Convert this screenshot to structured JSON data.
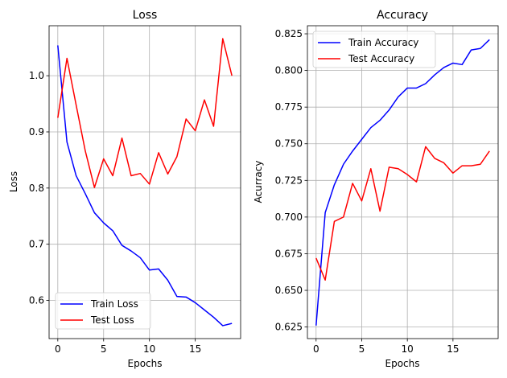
{
  "chart_data": [
    {
      "type": "line",
      "title": "Loss",
      "xlabel": "Epochs",
      "ylabel": "Loss",
      "xlim": [
        -0.95,
        19.95
      ],
      "ylim": [
        0.532,
        1.089
      ],
      "xticks": [
        0,
        5,
        10,
        15
      ],
      "yticks": [
        0.6,
        0.7,
        0.8,
        0.9,
        1.0
      ],
      "ytick_labels": [
        "0.6",
        "0.7",
        "0.8",
        "0.9",
        "1.0"
      ],
      "grid": true,
      "legend_position": "lower-left",
      "x": [
        0,
        1,
        2,
        3,
        4,
        5,
        6,
        7,
        8,
        9,
        10,
        11,
        12,
        13,
        14,
        15,
        16,
        17,
        18,
        19
      ],
      "series": [
        {
          "name": "Train Loss",
          "color": "#0000ff",
          "values": [
            1.054,
            0.882,
            0.822,
            0.79,
            0.756,
            0.738,
            0.724,
            0.698,
            0.688,
            0.676,
            0.654,
            0.656,
            0.636,
            0.607,
            0.606,
            0.596,
            0.583,
            0.57,
            0.555,
            0.559
          ]
        },
        {
          "name": "Test Loss",
          "color": "#ff0000",
          "values": [
            0.925,
            1.031,
            0.948,
            0.866,
            0.801,
            0.852,
            0.822,
            0.889,
            0.822,
            0.826,
            0.807,
            0.863,
            0.825,
            0.856,
            0.923,
            0.902,
            0.957,
            0.91,
            1.066,
            1.0
          ]
        }
      ]
    },
    {
      "type": "line",
      "title": "Accuracy",
      "xlabel": "Epochs",
      "ylabel": "Acurracy",
      "xlim": [
        -0.95,
        19.95
      ],
      "ylim": [
        0.6171,
        0.8305
      ],
      "xticks": [
        0,
        5,
        10,
        15
      ],
      "yticks": [
        0.625,
        0.65,
        0.675,
        0.7,
        0.725,
        0.75,
        0.775,
        0.8,
        0.825
      ],
      "ytick_labels": [
        "0.625",
        "0.650",
        "0.675",
        "0.700",
        "0.725",
        "0.750",
        "0.775",
        "0.800",
        "0.825"
      ],
      "grid": true,
      "legend_position": "upper-left",
      "x": [
        0,
        1,
        2,
        3,
        4,
        5,
        6,
        7,
        8,
        9,
        10,
        11,
        12,
        13,
        14,
        15,
        16,
        17,
        18,
        19
      ],
      "series": [
        {
          "name": "Train Accuracy",
          "color": "#0000ff",
          "values": [
            0.626,
            0.703,
            0.722,
            0.736,
            0.745,
            0.753,
            0.761,
            0.766,
            0.773,
            0.782,
            0.788,
            0.788,
            0.791,
            0.797,
            0.802,
            0.805,
            0.804,
            0.814,
            0.815,
            0.821
          ]
        },
        {
          "name": "Test Accuracy",
          "color": "#ff0000",
          "values": [
            0.672,
            0.657,
            0.697,
            0.7,
            0.723,
            0.711,
            0.733,
            0.704,
            0.734,
            0.733,
            0.729,
            0.724,
            0.748,
            0.74,
            0.737,
            0.73,
            0.735,
            0.735,
            0.736,
            0.745
          ]
        }
      ]
    }
  ]
}
